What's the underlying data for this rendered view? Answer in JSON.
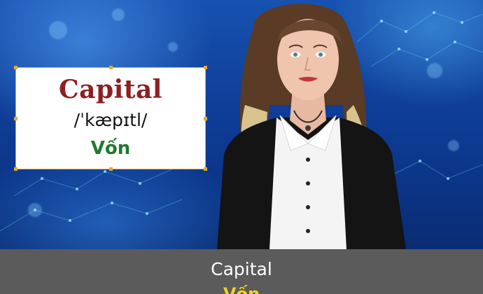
{
  "flashcard": {
    "word": "Capital",
    "pronunciation": "/ˈkæpɪtl/",
    "meaning": "Vốn"
  },
  "subtitles": {
    "line1": "Capital",
    "line2": "Vốn"
  },
  "colors": {
    "background_blue": "#0f3f9a",
    "word": "#8e1f22",
    "meaning": "#1f7a2b",
    "caption_bar": "#5b5b5b",
    "caption_line2": "#f2d21b"
  }
}
